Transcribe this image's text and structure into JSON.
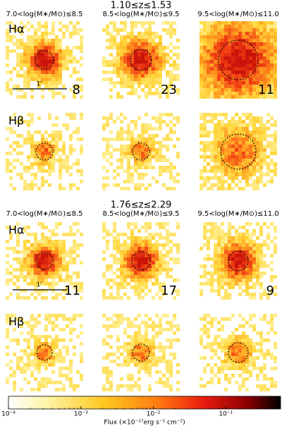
{
  "groups": [
    {
      "redshift": "1.10≤z≤1.53",
      "mass_bins": [
        "7.0<log(M∗/M⊙)≤8.5",
        "8.5<log(M∗/M⊙)≤9.5",
        "9.5<log(M∗/M⊙)≤11.0"
      ],
      "rows": [
        {
          "line": "Hα",
          "counts": [
            8,
            23,
            11
          ]
        },
        {
          "line": "Hβ"
        }
      ],
      "scale_bar": "1″"
    },
    {
      "redshift": "1.76≤z≤2.29",
      "mass_bins": [
        "7.0<log(M∗/M⊙)≤8.5",
        "8.5<log(M∗/M⊙)≤9.5",
        "9.5<log(M∗/M⊙)≤11.0"
      ],
      "rows": [
        {
          "line": "Hα",
          "counts": [
            11,
            17,
            9
          ]
        },
        {
          "line": "Hβ"
        }
      ],
      "scale_bar": "1″"
    }
  ],
  "colorbar": {
    "label": "Flux (×10⁻¹⁷erg s⁻¹ cm⁻²)",
    "scale": "log",
    "lim": [
      0.0001,
      0.57
    ],
    "ticks": [
      {
        "value": 0.0001,
        "label": "10⁻⁴"
      },
      {
        "value": 0.001,
        "label": "10⁻³"
      },
      {
        "value": 0.01,
        "label": "10⁻²"
      },
      {
        "value": 0.1,
        "label": "10⁻¹"
      }
    ]
  }
}
